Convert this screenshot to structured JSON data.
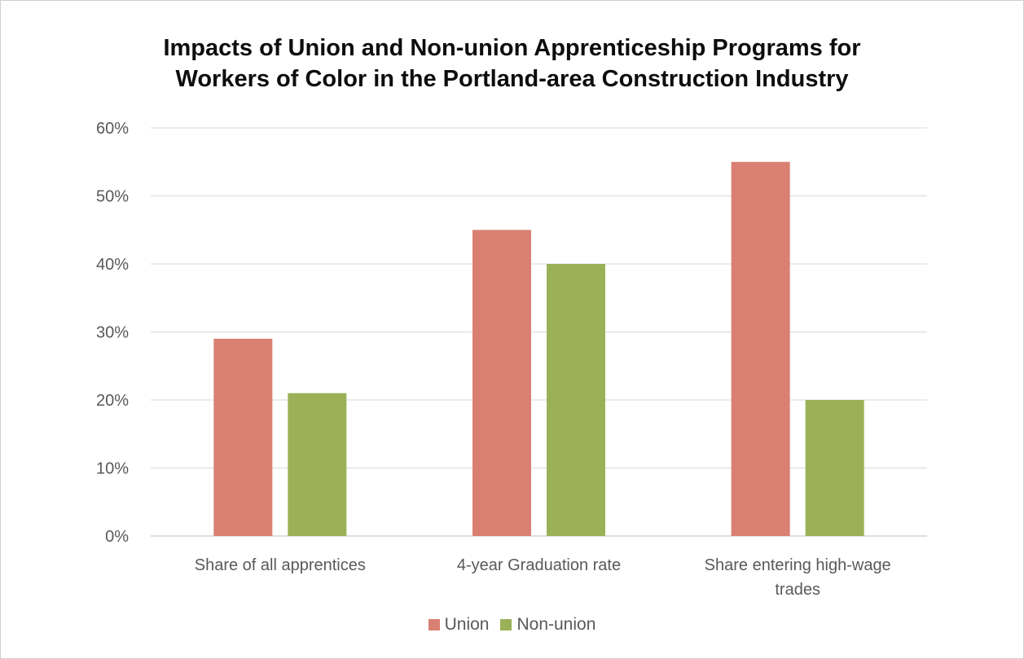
{
  "colors": {
    "union": "#d98072",
    "non_union": "#9bb158",
    "gridline": "#d9d9d9",
    "axis": "#bfbfbf"
  },
  "chart_data": {
    "type": "bar",
    "title_lines": [
      "Impacts of Union and Non-union Apprenticeship Programs for",
      "Workers of Color in the Portland-area Construction Industry"
    ],
    "categories": [
      [
        "Share of all apprentices"
      ],
      [
        "4-year Graduation rate"
      ],
      [
        "Share entering high-wage",
        "trades"
      ]
    ],
    "series": [
      {
        "name": "Union",
        "values": [
          29,
          45,
          55
        ]
      },
      {
        "name": "Non-union",
        "values": [
          21,
          40,
          20
        ]
      }
    ],
    "ylim": [
      0,
      60
    ],
    "yticks": [
      0,
      10,
      20,
      30,
      40,
      50,
      60
    ],
    "ytick_labels": [
      "0%",
      "10%",
      "20%",
      "30%",
      "40%",
      "50%",
      "60%"
    ],
    "grid": true,
    "legend_position": "bottom"
  }
}
